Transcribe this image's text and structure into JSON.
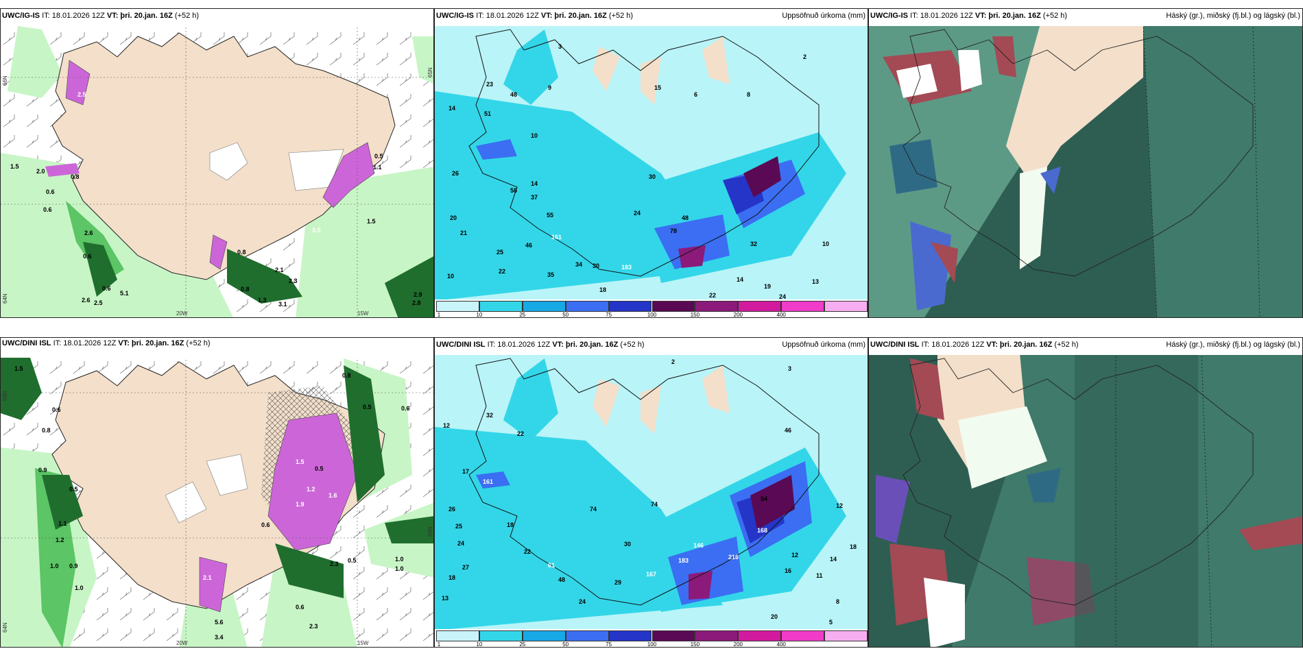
{
  "panels": {
    "ig_precip": {
      "model": "UWC/IG-IS",
      "it": "IT: 18.01.2026 12Z",
      "vt": "VT: þri. 20.jan. 16Z",
      "lead": "(+52 h)",
      "lon_labels": [
        "20W",
        "15W"
      ],
      "lat_labels": [
        "66N",
        "64N",
        "65N"
      ],
      "values": [
        "2.5",
        "1.5",
        "2.0",
        "0.8",
        "0.6",
        "0.6",
        "2.6",
        "0.6",
        "0.6",
        "5.1",
        "2.6",
        "2.5",
        "0.8",
        "0.5",
        "1.5",
        "3.5",
        "1.1",
        "2.1",
        "1.3",
        "3.1",
        "2.9",
        "2.8",
        "0.8",
        "2.3"
      ]
    },
    "ig_accum": {
      "model": "UWC/IG-IS",
      "it": "IT: 18.01.2026 12Z",
      "vt": "VT: þri. 20.jan. 16Z",
      "lead": "(+52 h)",
      "field": "Uppsöfnuð úrkoma (mm)",
      "values": [
        "3",
        "23",
        "14",
        "51",
        "48",
        "9",
        "10",
        "26",
        "55",
        "37",
        "14",
        "24",
        "30",
        "46",
        "20",
        "21",
        "25",
        "22",
        "10",
        "161",
        "35",
        "34",
        "30",
        "183",
        "58",
        "78",
        "48",
        "32",
        "19",
        "10",
        "13",
        "22",
        "24",
        "18",
        "14",
        "15",
        "6",
        "8",
        "2"
      ]
    },
    "ig_cloud": {
      "model": "UWC/IG-IS",
      "it": "IT: 18.01.2026 12Z",
      "vt": "VT: þri. 20.jan. 16Z",
      "lead": "(+52 h)",
      "field": "Háský (gr.), miðský (fj.bl.) og lágský (bl.)"
    },
    "dini_precip": {
      "model": "UWC/DINI ISL",
      "it": "IT: 18.01.2026 12Z",
      "vt": "VT: þri. 20.jan. 16Z",
      "lead": "(+52 h)",
      "lon_labels": [
        "20W",
        "15W"
      ],
      "lat_labels": [
        "66N",
        "64N",
        "65N"
      ],
      "values": [
        "1.5",
        "0.6",
        "0.8",
        "0.9",
        "0.5",
        "1.1",
        "1.2",
        "1.0",
        "0.9",
        "1.0",
        "1.5",
        "1.2",
        "1.9",
        "1.6",
        "0.5",
        "0.6",
        "2.1",
        "5.6",
        "3.4",
        "0.6",
        "2.3",
        "0.5",
        "1.0",
        "1.0",
        "0.8",
        "0.5",
        "0.6",
        "2.3"
      ]
    },
    "dini_accum": {
      "model": "UWC/DINI ISL",
      "it": "IT: 18.01.2026 12Z",
      "vt": "VT: þri. 20.jan. 16Z",
      "lead": "(+52 h)",
      "field": "Uppsöfnuð úrkoma (mm)",
      "values": [
        "2",
        "3",
        "32",
        "22",
        "12",
        "26",
        "25",
        "24",
        "17",
        "18",
        "161",
        "61",
        "74",
        "74",
        "30",
        "167",
        "183",
        "146",
        "216",
        "168",
        "48",
        "29",
        "24",
        "27",
        "20",
        "22",
        "18",
        "13",
        "5",
        "8",
        "14",
        "12",
        "16",
        "11",
        "54",
        "46",
        "12",
        "18"
      ]
    },
    "dini_cloud": {
      "model": "UWC/DINI ISL",
      "it": "IT: 18.01.2026 12Z",
      "vt": "VT: þri. 20.jan. 16Z",
      "lead": "(+52 h)",
      "field": "Háský (gr.), miðský (fj.bl.) og lágský (bl.)"
    }
  },
  "colorbar": {
    "labels": [
      "1",
      "10",
      "25",
      "50",
      "75",
      "100",
      "150",
      "200",
      "400"
    ],
    "colors": [
      "#c8f4fa",
      "#33d6e8",
      "#17a8e6",
      "#3b6ef2",
      "#2435c8",
      "#5a0a55",
      "#8b1a7a",
      "#d21a9e",
      "#f03cc8",
      "#f7aef0"
    ]
  },
  "colors": {
    "land": "#f3dfca",
    "sea": "#ffffff",
    "precip_light": "#c8f5c6",
    "precip_mid": "#5cc565",
    "precip_dark": "#1f6e2e",
    "snow": "#cc66d8",
    "cloud_dark": "#2e5e52",
    "cloud_mid": "#5d9a86",
    "cloud_low": "#4a6ad0",
    "cloud_red": "#a34a55"
  }
}
